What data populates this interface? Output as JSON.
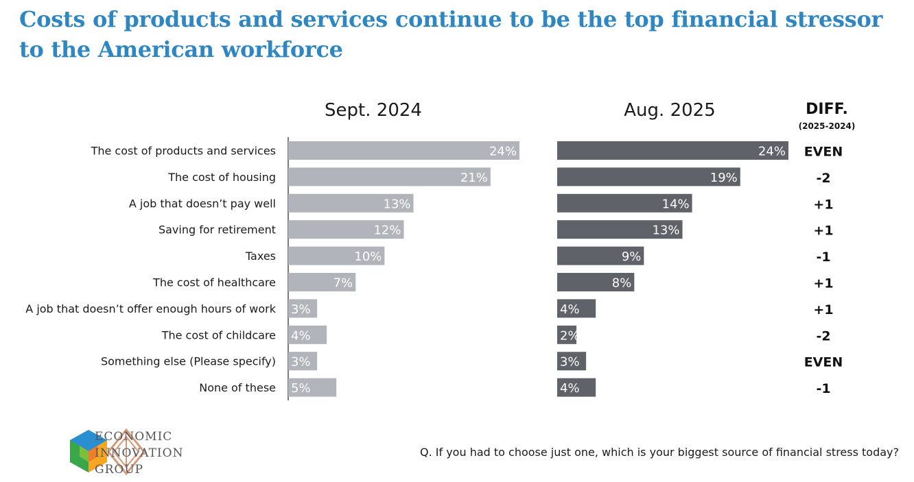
{
  "title": "Costs of products and services continue to be the top financial stressor to the American workforce",
  "question": "Q. If you had to choose just one, which is your biggest source of financial stress today?",
  "logo": {
    "line1": "ECONOMIC",
    "line2": "INNOVATION",
    "line3": "GROUP"
  },
  "diff_header": {
    "label": "DIFF.",
    "sub": "(2025-2024)"
  },
  "colors": {
    "title": "#2e87c2",
    "sept2024": "#b1b4ba",
    "aug2025": "#5f6268"
  },
  "chart_data": {
    "type": "bar",
    "orientation": "horizontal",
    "categories": [
      "The cost of products and services",
      "The cost of housing",
      "A job that doesn’t pay well",
      "Saving for retirement",
      "Taxes",
      "The cost of healthcare",
      "A job that doesn’t offer enough hours of work",
      "The cost of childcare",
      "Something else (Please specify)",
      "None of these"
    ],
    "series": [
      {
        "name": "Sept. 2024",
        "values": [
          24,
          21,
          13,
          12,
          10,
          7,
          3,
          4,
          3,
          5
        ]
      },
      {
        "name": "Aug. 2025",
        "values": [
          24,
          19,
          14,
          13,
          9,
          8,
          4,
          2,
          3,
          4
        ]
      }
    ],
    "diff": [
      "EVEN",
      "-2",
      "+1",
      "+1",
      "-1",
      "+1",
      "+1",
      "-2",
      "EVEN",
      "-1"
    ],
    "unit": "%",
    "xlim": [
      0,
      24
    ]
  }
}
